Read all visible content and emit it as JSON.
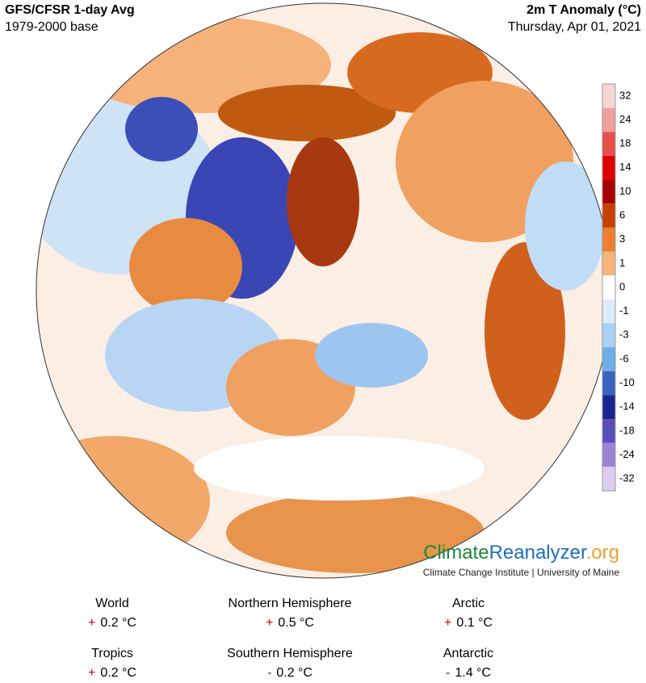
{
  "header": {
    "title": "GFS/CFSR 1-day Avg",
    "subtitle": "1979-2000 base",
    "variable": "2m T Anomaly (°C)",
    "date": "Thursday, Apr 01, 2021"
  },
  "colorbar": {
    "ticks": [
      32,
      24,
      18,
      14,
      10,
      6,
      3,
      1,
      0,
      -1,
      -3,
      -6,
      -10,
      -14,
      -18,
      -24,
      -32
    ],
    "colors": [
      "#f6d6d2",
      "#f0a09c",
      "#e8504c",
      "#e00000",
      "#a80000",
      "#c84000",
      "#ec8030",
      "#f6b47a",
      "#ffffff",
      "#dcecfb",
      "#a8d0f4",
      "#70aee8",
      "#3a64c0",
      "#1c2690",
      "#5a4eb8",
      "#9a84d6",
      "#dcccf0"
    ]
  },
  "logo": {
    "part1": "Climate",
    "part2": "Reanalyzer",
    "part3": ".org",
    "caption": "Climate Change Institute | University of Maine"
  },
  "stats": [
    {
      "label": "World",
      "sign": "+",
      "value": "0.2 °C"
    },
    {
      "label": "Northern Hemisphere",
      "sign": "+",
      "value": "0.5 °C"
    },
    {
      "label": "Arctic",
      "sign": "+",
      "value": "0.1 °C"
    },
    {
      "label": "Tropics",
      "sign": "+",
      "value": "0.2 °C"
    },
    {
      "label": "Southern Hemisphere",
      "sign": "-",
      "value": "0.2 °C"
    },
    {
      "label": "Antarctic",
      "sign": "-",
      "value": "1.4 °C"
    }
  ]
}
